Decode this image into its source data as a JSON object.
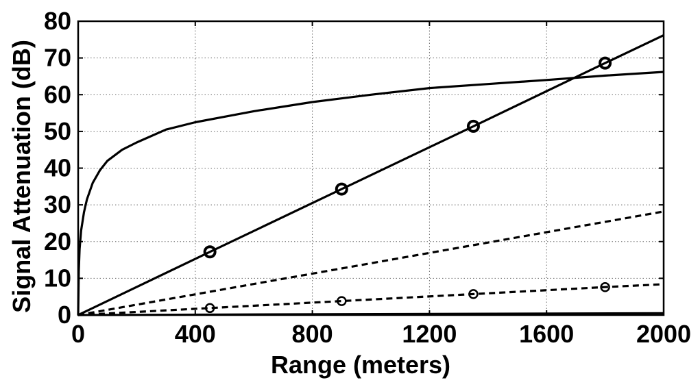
{
  "chart_data": {
    "type": "line",
    "title": "",
    "xlabel": "Range (meters)",
    "ylabel": "Signal Attenuation (dB)",
    "xlim": [
      0,
      2000
    ],
    "ylim": [
      0,
      80
    ],
    "xticks": [
      0,
      400,
      800,
      1200,
      1600,
      2000
    ],
    "yticks": [
      0,
      10,
      20,
      30,
      40,
      50,
      60,
      70,
      80
    ],
    "xtick_labels": [
      "0",
      "400",
      "800",
      "1200",
      "1600",
      "2000"
    ],
    "ytick_labels": [
      "0",
      "10",
      "20",
      "30",
      "40",
      "50",
      "60",
      "70",
      "80"
    ],
    "grid": true,
    "legend": "none",
    "series": [
      {
        "style": "solid",
        "marker": "none",
        "x": [
          0,
          2,
          5,
          10,
          20,
          30,
          50,
          75,
          100,
          150,
          200,
          300,
          400,
          500,
          600,
          800,
          1000,
          1200,
          1400,
          1600,
          1800,
          2000
        ],
        "y": [
          0,
          12,
          18,
          23,
          28,
          31.5,
          36,
          39.5,
          42,
          45,
          47,
          50.5,
          52.5,
          54,
          55.5,
          58,
          60,
          61.8,
          62.9,
          64,
          65.2,
          66.2
        ]
      },
      {
        "style": "solid",
        "marker": "circle",
        "x": [
          0,
          450,
          900,
          1350,
          1800,
          2000
        ],
        "y": [
          0,
          17.2,
          34.3,
          51.4,
          68.6,
          76.2
        ],
        "marker_x": [
          450,
          900,
          1350,
          1800
        ],
        "marker_y": [
          17.2,
          34.3,
          51.4,
          68.6
        ]
      },
      {
        "style": "dashed",
        "marker": "none",
        "x": [
          0,
          2000
        ],
        "y": [
          0,
          28.2
        ]
      },
      {
        "style": "dashed",
        "marker": "circle-small",
        "x": [
          0,
          450,
          900,
          1350,
          1800,
          2000
        ],
        "y": [
          0,
          1.9,
          3.8,
          5.7,
          7.6,
          8.4
        ],
        "marker_x": [
          450,
          900,
          1350,
          1800
        ],
        "marker_y": [
          1.9,
          3.8,
          5.7,
          7.6
        ]
      },
      {
        "style": "solid",
        "marker": "none",
        "x": [
          0,
          2000
        ],
        "y": [
          0,
          0.5
        ]
      }
    ]
  }
}
